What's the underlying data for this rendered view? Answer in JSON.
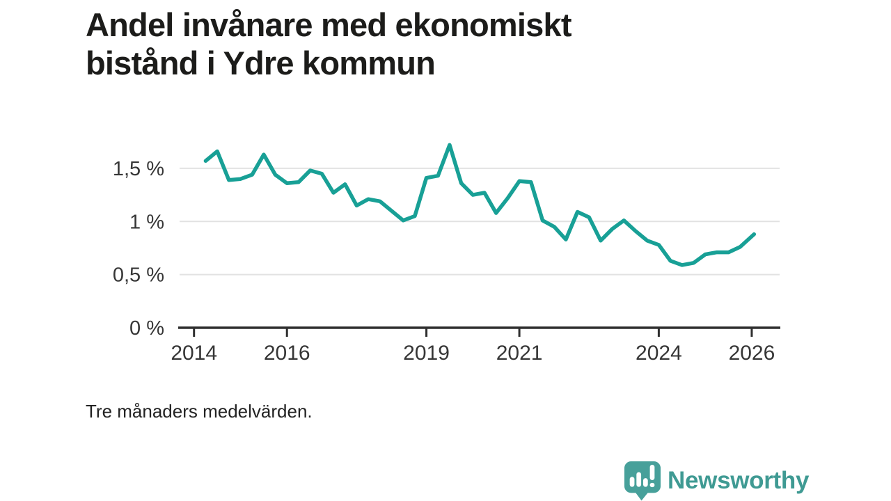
{
  "title": {
    "lines": [
      "Andel invånare med ekonomiskt",
      "bistånd i Ydre kommun"
    ],
    "full": "Andel invånare med ekonomiskt bistånd i Ydre kommun"
  },
  "footnote": "Tre månaders medelvärden.",
  "branding": {
    "logo_text": "Newsworthy",
    "logo_icon": "newsworthy-speech-bubble-bar-chart-icon"
  },
  "colors": {
    "line": "#18a096",
    "grid": "#e2e2e2",
    "axis": "#2f2f2f",
    "tick_label": "#363636",
    "title": "#1c1c1a",
    "logo": "#3f9a93",
    "logo_icon": "#47a09a",
    "background": "#ffffff"
  },
  "chart_data": {
    "type": "line",
    "title": "Andel invånare med ekonomiskt bistånd i Ydre kommun",
    "subtitle": "Tre månaders medelvärden.",
    "series_name": "Andel invånare med ekonomiskt bistånd",
    "unit": "%",
    "grid": "horizontal",
    "legend": "none",
    "xlim": [
      2013.69,
      2026.6
    ],
    "ylim": [
      0,
      1.84
    ],
    "xticks": [
      {
        "value": 2014,
        "label": "2014"
      },
      {
        "value": 2016,
        "label": "2016"
      },
      {
        "value": 2019,
        "label": "2019"
      },
      {
        "value": 2021,
        "label": "2021"
      },
      {
        "value": 2024,
        "label": "2024"
      },
      {
        "value": 2026,
        "label": "2026"
      }
    ],
    "yticks": [
      {
        "value": 0,
        "label": "0 %"
      },
      {
        "value": 0.5,
        "label": "0,5 %"
      },
      {
        "value": 1,
        "label": "1 %"
      },
      {
        "value": 1.5,
        "label": "1,5 %"
      }
    ],
    "x": [
      2014.25,
      2014.5,
      2014.75,
      2015.0,
      2015.25,
      2015.5,
      2015.75,
      2016.0,
      2016.25,
      2016.5,
      2016.75,
      2017.0,
      2017.25,
      2017.5,
      2017.75,
      2018.0,
      2018.25,
      2018.5,
      2018.75,
      2019.0,
      2019.25,
      2019.5,
      2019.75,
      2020.0,
      2020.25,
      2020.5,
      2020.75,
      2021.0,
      2021.25,
      2021.5,
      2021.75,
      2022.0,
      2022.25,
      2022.5,
      2022.75,
      2023.0,
      2023.25,
      2023.5,
      2023.75,
      2024.0,
      2024.25,
      2024.5,
      2024.75,
      2025.0,
      2025.25,
      2025.5,
      2025.75,
      2026.05
    ],
    "y": [
      1.57,
      1.66,
      1.39,
      1.4,
      1.44,
      1.63,
      1.44,
      1.36,
      1.37,
      1.48,
      1.45,
      1.27,
      1.35,
      1.15,
      1.21,
      1.19,
      1.1,
      1.01,
      1.05,
      1.41,
      1.43,
      1.72,
      1.36,
      1.25,
      1.27,
      1.08,
      1.22,
      1.38,
      1.37,
      1.01,
      0.95,
      0.83,
      1.09,
      1.04,
      0.82,
      0.93,
      1.01,
      0.91,
      0.82,
      0.78,
      0.63,
      0.59,
      0.61,
      0.69,
      0.71,
      0.71,
      0.76,
      0.88
    ]
  }
}
